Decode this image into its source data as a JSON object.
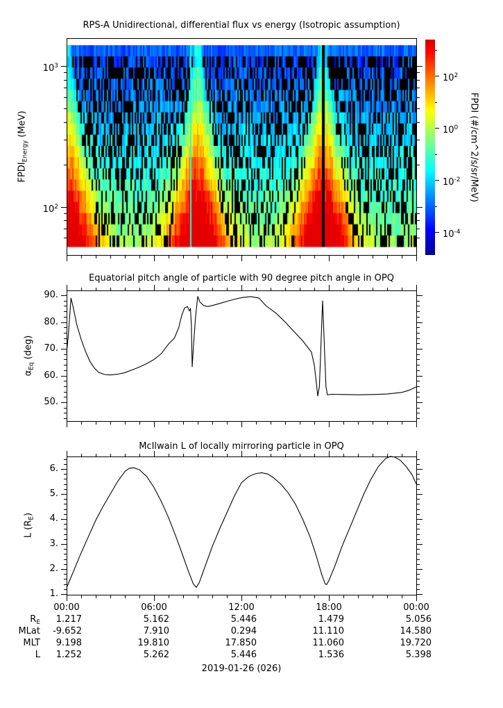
{
  "figure": {
    "background": "#ffffff",
    "text_color": "#000000",
    "line_color": "#000000",
    "date_label": "2019-01-26 (026)"
  },
  "labels": {
    "spec_ylabel": {
      "pre": "FPDI",
      "sub": "Energy",
      "post": " (MeV)"
    },
    "alpha_ylabel": {
      "pre": "α",
      "sub": "Eq",
      "post": " (deg)"
    },
    "l_ylabel": {
      "pre": "L (R",
      "sub": "E",
      "post": ")"
    }
  },
  "chart_data": [
    {
      "type": "heatmap",
      "title": "RPS-A Unidirectional, differential flux vs energy (Isotropic assumption)",
      "ylabel": "FPDI_Energy (MeV)",
      "xlabel": "",
      "yaxis": {
        "scale": "log",
        "range_mev": [
          52,
          1450
        ],
        "tick_labels": [
          "10^3",
          "10^2"
        ],
        "tick_values": [
          1000,
          100
        ],
        "minor_ticks_mev": [
          60,
          70,
          80,
          90,
          200,
          300,
          400,
          500,
          600,
          700,
          800,
          900
        ]
      },
      "xaxis": {
        "range_hours": [
          0,
          24
        ],
        "major_tick_labels": [
          "00:00",
          "06:00",
          "12:00",
          "18:00",
          "00:00"
        ],
        "major_tick_hours": [
          0,
          6,
          12,
          18,
          24
        ],
        "minor_tick_every_hours": 1
      },
      "colorbar": {
        "label": "FPDI (#/cm^2/s/sr/MeV)",
        "colormap": "jet",
        "tick_labels": [
          "10^2",
          "10^0",
          "10^-2",
          "10^-4"
        ],
        "tick_exponents": [
          2,
          0,
          -2,
          -4
        ],
        "range_exponents": [
          -5,
          3.4
        ]
      },
      "features": {
        "description": "Proton differential-flux spectrogram: funnel-shaped green/yellow/orange flux enhancements during low-L perigee passes that widen toward low energies; solid blue band at the highest energies; speckled black data gaps elsewhere; one full-height black data-gap line near 17:40 and a faint light stripe near 08:30.",
        "enhancement_center_hours": [
          0.0,
          9.0,
          17.55
        ],
        "vertical_gap_line_hour": 17.62,
        "light_stripe_hour": 8.5,
        "energy_rows": 18,
        "time_columns": 252
      }
    },
    {
      "type": "line",
      "title": "Equatorial pitch angle of particle with 90 degree pitch angle in OPQ",
      "ylabel": "α_Eq (deg)",
      "xlabel": "",
      "yticks": [
        "90.",
        "80.",
        "70.",
        "60.",
        "50."
      ],
      "ytick_values": [
        90,
        80,
        70,
        60,
        50
      ],
      "ylim_display": [
        43,
        92
      ],
      "xlim_hours": [
        0,
        24
      ],
      "points": [
        [
          0,
          68.5
        ],
        [
          0.12,
          75
        ],
        [
          0.3,
          89
        ],
        [
          0.45,
          85.5
        ],
        [
          0.7,
          79
        ],
        [
          1,
          73.5
        ],
        [
          1.3,
          69
        ],
        [
          1.6,
          65.3
        ],
        [
          1.9,
          62.8
        ],
        [
          2.2,
          61.2
        ],
        [
          2.6,
          60.4
        ],
        [
          3,
          60.2
        ],
        [
          3.5,
          60.5
        ],
        [
          4,
          61.1
        ],
        [
          4.5,
          62.1
        ],
        [
          5,
          63.2
        ],
        [
          5.5,
          64.5
        ],
        [
          6,
          66
        ],
        [
          6.5,
          68.2
        ],
        [
          7,
          71.8
        ],
        [
          7.4,
          74
        ],
        [
          7.7,
          78
        ],
        [
          7.9,
          82.5
        ],
        [
          8.1,
          85.3
        ],
        [
          8.3,
          85.8
        ],
        [
          8.42,
          84.2
        ],
        [
          8.5,
          85
        ],
        [
          8.56,
          79
        ],
        [
          8.62,
          63.2
        ],
        [
          8.72,
          72
        ],
        [
          8.85,
          82
        ],
        [
          9,
          89.6
        ],
        [
          9.15,
          87.5
        ],
        [
          9.4,
          86.2
        ],
        [
          9.7,
          85.8
        ],
        [
          10.1,
          86.3
        ],
        [
          10.6,
          87.1
        ],
        [
          11.1,
          87.9
        ],
        [
          11.6,
          88.6
        ],
        [
          12.1,
          89.2
        ],
        [
          12.65,
          89.5
        ],
        [
          13.2,
          89
        ],
        [
          13.7,
          86
        ],
        [
          14.4,
          83.2
        ],
        [
          15,
          80
        ],
        [
          15.6,
          76.5
        ],
        [
          16.2,
          73
        ],
        [
          16.8,
          68.8
        ],
        [
          17,
          64
        ],
        [
          17.15,
          57
        ],
        [
          17.24,
          52.3
        ],
        [
          17.35,
          56
        ],
        [
          17.45,
          70
        ],
        [
          17.57,
          88
        ],
        [
          17.7,
          70
        ],
        [
          17.8,
          56
        ],
        [
          17.9,
          52.8
        ],
        [
          18.2,
          53
        ],
        [
          19,
          52.9
        ],
        [
          20,
          52.8
        ],
        [
          21,
          52.9
        ],
        [
          22,
          53.1
        ],
        [
          23,
          53.7
        ],
        [
          23.5,
          54.5
        ],
        [
          24,
          55.8
        ]
      ]
    },
    {
      "type": "line",
      "title": "McIlwain L of locally mirroring particle in OPQ",
      "ylabel": "L (R_E)",
      "xlabel": "",
      "yticks": [
        "6.",
        "5.",
        "4.",
        "3.",
        "2.",
        "1."
      ],
      "ytick_values": [
        6,
        5,
        4,
        3,
        2,
        1
      ],
      "ylim_display": [
        0.97,
        6.5
      ],
      "xlim_hours": [
        0,
        24
      ],
      "points": [
        [
          0,
          1.25
        ],
        [
          0.5,
          1.95
        ],
        [
          1,
          2.65
        ],
        [
          1.5,
          3.3
        ],
        [
          2,
          3.95
        ],
        [
          2.5,
          4.5
        ],
        [
          3,
          5
        ],
        [
          3.5,
          5.5
        ],
        [
          4,
          5.9
        ],
        [
          4.3,
          6.03
        ],
        [
          4.6,
          6.05
        ],
        [
          5,
          5.97
        ],
        [
          5.5,
          5.7
        ],
        [
          6,
          5.26
        ],
        [
          6.5,
          4.7
        ],
        [
          7,
          4.05
        ],
        [
          7.5,
          3.3
        ],
        [
          8,
          2.5
        ],
        [
          8.4,
          1.85
        ],
        [
          8.7,
          1.4
        ],
        [
          8.9,
          1.27
        ],
        [
          9.1,
          1.45
        ],
        [
          9.5,
          2.1
        ],
        [
          10,
          2.9
        ],
        [
          10.5,
          3.6
        ],
        [
          11,
          4.25
        ],
        [
          11.5,
          4.9
        ],
        [
          12,
          5.45
        ],
        [
          12.5,
          5.7
        ],
        [
          13,
          5.82
        ],
        [
          13.4,
          5.85
        ],
        [
          13.8,
          5.8
        ],
        [
          14.2,
          5.65
        ],
        [
          14.7,
          5.4
        ],
        [
          15.2,
          5.05
        ],
        [
          15.7,
          4.6
        ],
        [
          16.2,
          4
        ],
        [
          16.7,
          3.3
        ],
        [
          17.1,
          2.6
        ],
        [
          17.5,
          1.8
        ],
        [
          17.75,
          1.4
        ],
        [
          17.85,
          1.38
        ],
        [
          18,
          1.54
        ],
        [
          18.4,
          2.1
        ],
        [
          18.9,
          2.9
        ],
        [
          19.4,
          3.6
        ],
        [
          19.9,
          4.3
        ],
        [
          20.4,
          5
        ],
        [
          20.9,
          5.6
        ],
        [
          21.4,
          6.1
        ],
        [
          21.9,
          6.42
        ],
        [
          22.2,
          6.5
        ],
        [
          22.5,
          6.48
        ],
        [
          22.9,
          6.35
        ],
        [
          23.3,
          6.1
        ],
        [
          23.7,
          5.78
        ],
        [
          24,
          5.4
        ]
      ]
    }
  ],
  "ephemeris": {
    "time_labels": [
      "00:00",
      "06:00",
      "12:00",
      "18:00",
      "00:00"
    ],
    "rows": [
      {
        "label": "R_E",
        "label_parts": {
          "pre": "R",
          "sub": "E",
          "post": ""
        },
        "values": [
          "1.217",
          "5.162",
          "5.446",
          "1.479",
          "5.056"
        ]
      },
      {
        "label": "MLat",
        "label_parts": {
          "pre": "MLat",
          "sub": "",
          "post": ""
        },
        "values": [
          "-9.652",
          "7.910",
          "0.294",
          "11.110",
          "14.580"
        ]
      },
      {
        "label": "MLT",
        "label_parts": {
          "pre": "MLT",
          "sub": "",
          "post": ""
        },
        "values": [
          "9.198",
          "19.810",
          "17.850",
          "11.060",
          "19.720"
        ]
      },
      {
        "label": "L",
        "label_parts": {
          "pre": "L",
          "sub": "",
          "post": ""
        },
        "values": [
          "1.252",
          "5.262",
          "5.446",
          "1.536",
          "5.398"
        ]
      }
    ]
  }
}
